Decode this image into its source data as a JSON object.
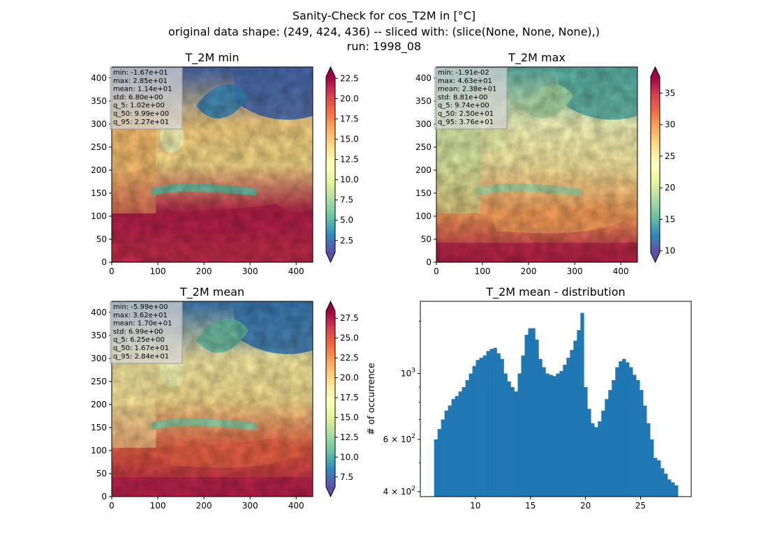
{
  "suptitle": {
    "line1": "Sanity-Check for cos_T2M in [°C]",
    "line2": "original data shape: (249, 424, 436) -- sliced with: (slice(None, None, None),)",
    "line3": "run: 1998_08"
  },
  "chart_data": [
    {
      "type": "heatmap",
      "title": "T_2M min",
      "colormap": "Spectral_r",
      "x_ticks": [
        0,
        100,
        200,
        300,
        400
      ],
      "y_ticks": [
        0,
        50,
        100,
        150,
        200,
        250,
        300,
        350,
        400
      ],
      "xlim": [
        0,
        436
      ],
      "ylim": [
        0,
        424
      ],
      "colorbar": {
        "range": [
          1.02,
          22.7
        ],
        "ticks": [
          "2.5",
          "5.0",
          "7.5",
          "10.0",
          "12.5",
          "15.0",
          "17.5",
          "20.0",
          "22.5"
        ],
        "extend": "both"
      },
      "stats": [
        "min: -1.67e+01",
        "max: 2.85e+01",
        "mean: 1.14e+01",
        "std: 6.80e+00",
        "q_5: 1.02e+00",
        "q_50: 9.99e+00",
        "q_95: 2.27e+01"
      ]
    },
    {
      "type": "heatmap",
      "title": "T_2M max",
      "colormap": "Spectral_r",
      "x_ticks": [
        0,
        100,
        200,
        300,
        400
      ],
      "y_ticks": [
        0,
        50,
        100,
        150,
        200,
        250,
        300,
        350,
        400
      ],
      "xlim": [
        0,
        436
      ],
      "ylim": [
        0,
        424
      ],
      "colorbar": {
        "range": [
          9.74,
          37.6
        ],
        "ticks": [
          "10",
          "15",
          "20",
          "25",
          "30",
          "35"
        ],
        "extend": "both"
      },
      "stats": [
        "min: -1.91e-02",
        "max: 4.63e+01",
        "mean: 2.38e+01",
        "std: 8.81e+00",
        "q_5: 9.74e+00",
        "q_50: 2.50e+01",
        "q_95: 3.76e+01"
      ]
    },
    {
      "type": "heatmap",
      "title": "T_2M mean",
      "colormap": "Spectral_r",
      "x_ticks": [
        0,
        100,
        200,
        300,
        400
      ],
      "y_ticks": [
        0,
        50,
        100,
        150,
        200,
        250,
        300,
        350,
        400
      ],
      "xlim": [
        0,
        436
      ],
      "ylim": [
        0,
        424
      ],
      "colorbar": {
        "range": [
          6.25,
          28.4
        ],
        "ticks": [
          "7.5",
          "10.0",
          "12.5",
          "15.0",
          "17.5",
          "20.0",
          "22.5",
          "25.0",
          "27.5"
        ],
        "extend": "both"
      },
      "stats": [
        "min: -5.99e+00",
        "max: 3.62e+01",
        "mean: 1.70e+01",
        "std: 6.99e+00",
        "q_5: 6.25e+00",
        "q_50: 1.67e+01",
        "q_95: 2.84e+01"
      ]
    },
    {
      "type": "bar",
      "title": "T_2M mean - distribution",
      "ylabel": "# of occurrence",
      "yscale": "log",
      "color": "#1f77b4",
      "xlim": [
        5.0,
        29.6
      ],
      "ylim": [
        385,
        1750
      ],
      "x_ticks": [
        "10",
        "15",
        "20",
        "25"
      ],
      "y_ticks": [
        {
          "value": 400,
          "label": "4 × 10",
          "exp": "2"
        },
        {
          "value": 600,
          "label": "6 × 10",
          "exp": "2"
        },
        {
          "value": 1000,
          "label": "10",
          "exp": "3"
        }
      ],
      "bin_start": 6.25,
      "bin_end": 28.4,
      "values": [
        600,
        650,
        700,
        750,
        780,
        820,
        840,
        870,
        900,
        950,
        1000,
        1060,
        1110,
        1130,
        1150,
        1190,
        1210,
        1220,
        1170,
        1120,
        1000,
        940,
        900,
        870,
        1000,
        1150,
        1350,
        1420,
        1420,
        1300,
        1120,
        1050,
        1000,
        990,
        980,
        1000,
        1020,
        1070,
        1130,
        1200,
        1290,
        1400,
        1600,
        900,
        760,
        680,
        660,
        690,
        750,
        820,
        880,
        950,
        1050,
        1100,
        1120,
        1090,
        1050,
        990,
        950,
        880,
        780,
        680,
        600,
        520,
        510,
        480,
        460,
        440,
        430,
        420
      ]
    }
  ]
}
